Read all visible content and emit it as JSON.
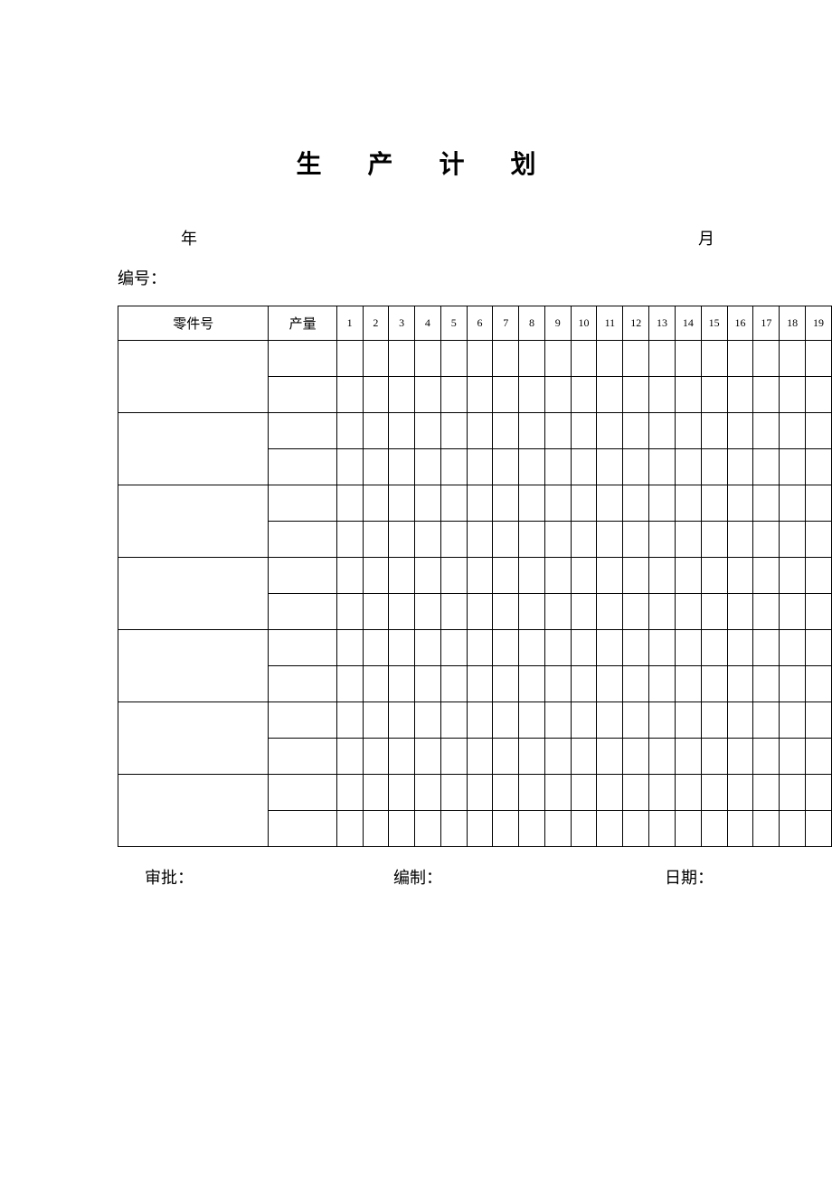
{
  "title": "生 产  计  划",
  "meta": {
    "year_label": "年",
    "month_label": "月"
  },
  "serial": {
    "label": "编号："
  },
  "table": {
    "header": {
      "part_no": "零件号",
      "quantity": "产量",
      "days": [
        "1",
        "2",
        "3",
        "4",
        "5",
        "6",
        "7",
        "8",
        "9",
        "10",
        "11",
        "12",
        "13",
        "14",
        "15",
        "16",
        "17",
        "18",
        "19"
      ]
    },
    "body_row_groups": 7,
    "rows_per_group": 2
  },
  "footer": {
    "approve_label": "审批：",
    "compile_label": "编制：",
    "date_label": "日期："
  },
  "style": {
    "background_color": "#ffffff",
    "border_color": "#000000",
    "title_fontsize": 28,
    "body_fontsize": 18,
    "header_cell_fontsize": 15,
    "day_cell_fontsize": 12
  }
}
